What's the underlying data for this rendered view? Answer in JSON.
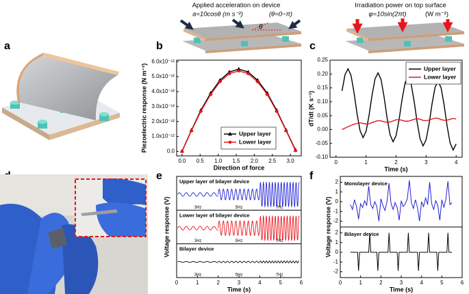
{
  "panel_labels": [
    "a",
    "b",
    "c",
    "d",
    "e",
    "f"
  ],
  "diagram_b": {
    "title": "Applied acceleration on device",
    "formula": "a=10cosθ (m s⁻²)",
    "range": "(θ=0~π)",
    "angle": "θ"
  },
  "diagram_c": {
    "title": "Irradiation power on top surface",
    "formula": "φ=10sin(2πt)",
    "unit": "(W m⁻²)"
  },
  "chart_data": [
    {
      "type": "line",
      "xlabel": "Direction of force",
      "ylabel": "Piezoelectric response (N m⁻²)",
      "x": [
        0,
        0.26,
        0.52,
        0.79,
        1.05,
        1.31,
        1.57,
        1.83,
        2.09,
        2.36,
        2.62,
        2.88,
        3.14
      ],
      "series": [
        {
          "name": "Upper layer",
          "color": "#000000",
          "marker": "triangle",
          "values": [
            2e-14,
            1.42e-12,
            2.75e-12,
            3.89e-12,
            4.76e-12,
            5.31e-12,
            5.5e-12,
            5.31e-12,
            4.76e-12,
            3.89e-12,
            2.75e-12,
            1.42e-12,
            1e-13
          ]
        },
        {
          "name": "Lower layer",
          "color": "#e8141b",
          "marker": "circle",
          "values": [
            0,
            1.38e-12,
            2.68e-12,
            3.8e-12,
            4.66e-12,
            5.2e-12,
            5.38e-12,
            5.2e-12,
            4.66e-12,
            3.8e-12,
            2.68e-12,
            1.38e-12,
            5e-14
          ]
        }
      ],
      "xlim": [
        -0.15,
        3.3
      ],
      "ylim": [
        -3e-13,
        6.1e-12
      ],
      "xticks": [
        {
          "value": 0,
          "label": "0.0"
        },
        0.5,
        {
          "value": 1,
          "label": "1.0"
        },
        1.5,
        {
          "value": 2,
          "label": "2.0"
        },
        2.5,
        {
          "value": 3,
          "label": "3.0"
        }
      ],
      "yticks": [
        {
          "value": 0,
          "label": "0.0"
        },
        {
          "value": 1e-12,
          "label": "1.0x10⁻¹²"
        },
        {
          "value": 2e-12,
          "label": "2.0x10⁻¹²"
        },
        {
          "value": 3e-12,
          "label": "3.0x10⁻¹²"
        },
        {
          "value": 4e-12,
          "label": "4.0x10⁻¹²"
        },
        {
          "value": 5e-12,
          "label": "5.0x10⁻¹²"
        },
        {
          "value": 6e-12,
          "label": "6.0x10⁻¹²"
        }
      ],
      "legend": "lower center",
      "grid": false
    },
    {
      "type": "line",
      "xlabel": "Time (s)",
      "ylabel": "dT/dt (K s⁻¹)",
      "x": [
        0.2,
        0.3,
        0.4,
        0.5,
        0.6,
        0.7,
        0.8,
        0.9,
        1.0,
        1.1,
        1.2,
        1.3,
        1.4,
        1.5,
        1.6,
        1.7,
        1.8,
        1.9,
        2.0,
        2.1,
        2.2,
        2.3,
        2.4,
        2.5,
        2.6,
        2.7,
        2.8,
        2.9,
        3.0,
        3.1,
        3.2,
        3.3,
        3.4,
        3.5,
        3.6,
        3.7,
        3.8,
        3.9,
        4.0
      ],
      "series": [
        {
          "name": "Upper layer",
          "color": "#000000",
          "values": [
            0.139,
            0.198,
            0.219,
            0.195,
            0.133,
            0.057,
            -0.004,
            -0.029,
            -0.007,
            0.051,
            0.124,
            0.183,
            0.204,
            0.18,
            0.118,
            0.042,
            -0.019,
            -0.044,
            -0.022,
            0.036,
            0.109,
            0.168,
            0.189,
            0.165,
            0.103,
            0.027,
            -0.034,
            -0.059,
            -0.037,
            0.021,
            0.094,
            0.153,
            0.174,
            0.15,
            0.088,
            0.012,
            -0.049,
            -0.074,
            -0.052
          ]
        },
        {
          "name": "Lower layer",
          "color": "#e8141b",
          "values": [
            0.0,
            0.005,
            0.01,
            0.015,
            0.019,
            0.022,
            0.024,
            0.022,
            0.02,
            0.021,
            0.025,
            0.029,
            0.032,
            0.031,
            0.028,
            0.026,
            0.027,
            0.031,
            0.035,
            0.036,
            0.033,
            0.03,
            0.03,
            0.033,
            0.037,
            0.039,
            0.037,
            0.033,
            0.032,
            0.034,
            0.038,
            0.041,
            0.04,
            0.036,
            0.033,
            0.034,
            0.037,
            0.04,
            0.038
          ]
        }
      ],
      "xlim": [
        -0.2,
        4.2
      ],
      "ylim": [
        -0.1,
        0.25
      ],
      "xticks": [
        0,
        1,
        2,
        3,
        4
      ],
      "yticks": [
        {
          "value": -0.1,
          "label": "-0.10"
        },
        {
          "value": -0.05,
          "label": "-0.05"
        },
        {
          "value": 0,
          "label": "0.00"
        },
        {
          "value": 0.05,
          "label": "0.05"
        },
        {
          "value": 0.1,
          "label": "0.10"
        },
        {
          "value": 0.15,
          "label": "0.15"
        },
        {
          "value": 0.2,
          "label": "0.20"
        },
        {
          "value": 0.25,
          "label": "0.25"
        }
      ],
      "legend": "upper right",
      "grid": false
    },
    {
      "type": "waveform",
      "xlabel": "Time (s)",
      "ylabel": "Voltage response (V)",
      "xlim": [
        0,
        6
      ],
      "xticks": [
        0,
        1,
        2,
        3,
        4,
        5,
        6
      ],
      "subplots": [
        {
          "title": "Upper layer of bilayer device",
          "color": "#1f1fd6",
          "ylim": [
            -1.3,
            1.5
          ],
          "segments": [
            {
              "label": "3Hz",
              "frequency": 3,
              "start": 0.05,
              "end": 2,
              "amplitude": 0.15
            },
            {
              "label": "5Hz",
              "frequency": 5,
              "start": 2,
              "end": 4,
              "amplitude": 0.45
            },
            {
              "label": "7Hz",
              "frequency": 7,
              "start": 4,
              "end": 5.9,
              "amplitude": 1.0
            }
          ]
        },
        {
          "title": "Lower layer of bilayer device",
          "color": "#e8141b",
          "ylim": [
            -1.3,
            1.5
          ],
          "segments": [
            {
              "label": "3Hz",
              "frequency": 3,
              "start": 0.05,
              "end": 2,
              "amplitude": 0.15
            },
            {
              "label": "5Hz",
              "frequency": 5,
              "start": 2,
              "end": 4,
              "amplitude": 0.6
            },
            {
              "label": "7Hz",
              "frequency": 7,
              "start": 4,
              "end": 5.9,
              "amplitude": 1.0
            }
          ]
        },
        {
          "title": "Bilayer device",
          "color": "#000000",
          "ylim": [
            -1.3,
            1.5
          ],
          "segments": [
            {
              "label": "3Hz",
              "frequency": 3,
              "start": 0.05,
              "end": 2,
              "amplitude": 0.04
            },
            {
              "label": "5Hz",
              "frequency": 5,
              "start": 2,
              "end": 4,
              "amplitude": 0.06
            },
            {
              "label": "7Hz",
              "frequency": 7,
              "start": 4,
              "end": 5.9,
              "amplitude": 0.08
            }
          ]
        }
      ]
    },
    {
      "type": "line",
      "xlabel": "Time (s)",
      "ylabel": "Voltage response (V)",
      "xlim": [
        0,
        6
      ],
      "xticks": [
        0,
        1,
        2,
        3,
        4,
        5,
        6
      ],
      "subplots": [
        {
          "title": "Monolayer device",
          "color": "#1f1fd6",
          "ylim": [
            -2.6,
            2.6
          ],
          "yticks": [
            -2,
            -1,
            0,
            1,
            2
          ],
          "x": [
            0.5,
            0.6,
            0.7,
            0.8,
            0.9,
            1.0,
            1.1,
            1.2,
            1.3,
            1.4,
            1.5,
            1.6,
            1.7,
            1.8,
            1.9,
            2.0,
            2.1,
            2.2,
            2.3,
            2.4,
            2.5,
            2.6,
            2.7,
            2.8,
            2.9,
            3.0,
            3.1,
            3.2,
            3.3,
            3.4,
            3.5,
            3.6,
            3.7,
            3.8,
            3.9,
            4.0,
            4.1,
            4.2,
            4.3,
            4.4,
            4.5,
            4.6,
            4.7,
            4.8,
            4.9,
            5.0,
            5.1,
            5.2,
            5.3,
            5.4,
            5.5
          ],
          "values": [
            -0.3,
            -0.8,
            0.2,
            -0.5,
            -1.8,
            -0.2,
            -0.6,
            0.1,
            -0.4,
            1.6,
            -0.3,
            -0.7,
            0.0,
            -0.5,
            -2.0,
            0.3,
            -0.4,
            -0.9,
            0.0,
            1.9,
            -0.2,
            -0.8,
            -0.1,
            -0.6,
            -1.9,
            0.1,
            -0.5,
            -0.2,
            0.3,
            2.2,
            -0.1,
            -0.7,
            0.2,
            -0.6,
            -2.0,
            0.0,
            -0.5,
            0.4,
            -0.3,
            2.0,
            -0.2,
            -0.8,
            0.1,
            -0.4,
            -1.9,
            0.2,
            -0.6,
            0.3,
            2.1,
            -0.3,
            -0.1
          ]
        },
        {
          "title": "Bilayer device",
          "color": "#000000",
          "ylim": [
            -2.6,
            2.6
          ],
          "yticks": [
            -2,
            -1,
            0,
            1,
            2
          ],
          "x": [
            0.5,
            0.85,
            0.9,
            0.95,
            1.4,
            1.45,
            1.5,
            1.8,
            1.85,
            1.9,
            2.35,
            2.4,
            2.45,
            2.8,
            2.85,
            2.9,
            3.3,
            3.35,
            3.4,
            3.8,
            3.85,
            3.9,
            4.3,
            4.35,
            4.4,
            4.75,
            4.8,
            4.85,
            5.25,
            5.3,
            5.35,
            5.5
          ],
          "values": [
            0,
            0,
            -1.9,
            0,
            0,
            2.0,
            0,
            0,
            -1.9,
            0,
            0,
            2.0,
            0,
            0,
            -1.9,
            0,
            0,
            2.0,
            0,
            0,
            -1.9,
            0,
            0,
            2.0,
            0,
            0,
            -1.9,
            0,
            0,
            2.0,
            0,
            0
          ]
        }
      ]
    }
  ]
}
